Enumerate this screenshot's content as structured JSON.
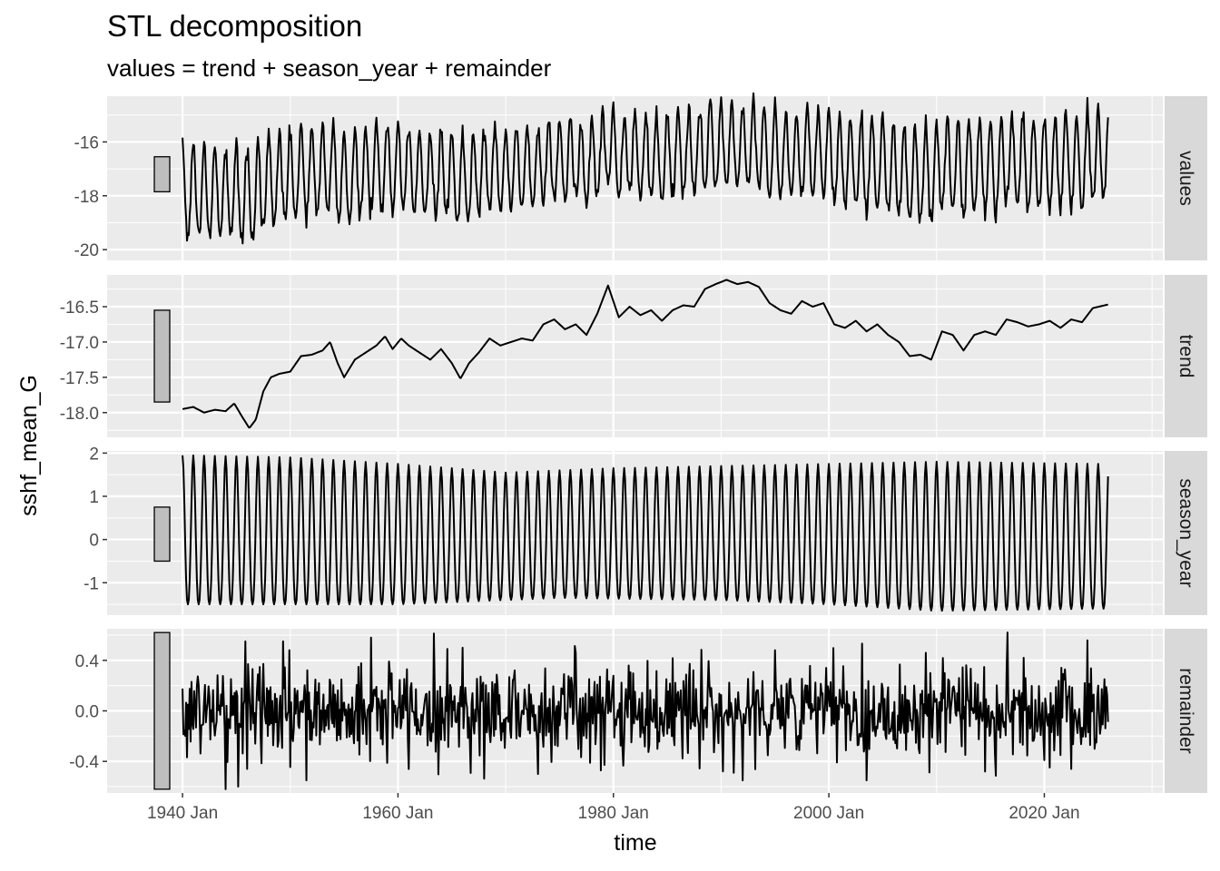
{
  "chart_data": {
    "type": "line",
    "title": "STL decomposition",
    "subtitle": "values = trend + season_year + remainder",
    "xlabel": "time",
    "ylabel": "sshf_mean_G",
    "x_range": [
      "1933-01",
      "2031-01"
    ],
    "x_ticks": [
      {
        "label": "1940 Jan",
        "year": 1940
      },
      {
        "label": "1960 Jan",
        "year": 1960
      },
      {
        "label": "1980 Jan",
        "year": 1980
      },
      {
        "label": "2000 Jan",
        "year": 2000
      },
      {
        "label": "2020 Jan",
        "year": 2020
      }
    ],
    "series_range": [
      "1940-01",
      "2025-12"
    ],
    "grid": true,
    "background": "#ebebeb",
    "line_color": "#000000",
    "scale_bar_color": "#bebebe",
    "panels": [
      {
        "name": "values",
        "ylim": [
          -20.4,
          -14.3
        ],
        "y_ticks": [
          -16,
          -18,
          -20
        ],
        "y_tick_labels": [
          "-16",
          "-18",
          "-20"
        ],
        "scale_bar": [
          -17.85,
          -16.55
        ],
        "level_points": [
          [
            1940,
            -17.95
          ],
          [
            1946,
            -18.2
          ],
          [
            1948,
            -17.5
          ],
          [
            1952,
            -17.1
          ],
          [
            1955,
            -17.3
          ],
          [
            1958,
            -17.0
          ],
          [
            1962,
            -17.3
          ],
          [
            1966,
            -17.3
          ],
          [
            1970,
            -17.0
          ],
          [
            1975,
            -16.75
          ],
          [
            1979,
            -16.2
          ],
          [
            1982,
            -16.7
          ],
          [
            1986,
            -16.5
          ],
          [
            1990,
            -16.15
          ],
          [
            1994,
            -16.45
          ],
          [
            1998,
            -16.55
          ],
          [
            2002,
            -16.9
          ],
          [
            2006,
            -17.1
          ],
          [
            2008,
            -17.2
          ],
          [
            2012,
            -17.0
          ],
          [
            2016,
            -16.75
          ],
          [
            2020,
            -16.75
          ],
          [
            2025,
            -16.45
          ]
        ],
        "season_amplitude_points": [
          [
            1940,
            1.85
          ],
          [
            1950,
            1.7
          ],
          [
            1965,
            1.5
          ],
          [
            1975,
            1.5
          ],
          [
            1990,
            1.6
          ],
          [
            2010,
            1.75
          ],
          [
            2025,
            1.7
          ]
        ],
        "noise_sd": 0.2
      },
      {
        "name": "trend",
        "ylim": [
          -18.35,
          -16.05
        ],
        "y_ticks": [
          -16.5,
          -17.0,
          -17.5,
          -18.0
        ],
        "y_tick_labels": [
          "-16.5",
          "-17.0",
          "-17.5",
          "-18.0"
        ],
        "scale_bar": [
          -17.85,
          -16.55
        ],
        "points": [
          [
            1940.0,
            -17.95
          ],
          [
            1941.0,
            -17.92
          ],
          [
            1942.0,
            -18.0
          ],
          [
            1943.0,
            -17.96
          ],
          [
            1944.0,
            -17.98
          ],
          [
            1944.8,
            -17.87
          ],
          [
            1945.5,
            -18.05
          ],
          [
            1946.2,
            -18.22
          ],
          [
            1946.8,
            -18.1
          ],
          [
            1947.5,
            -17.7
          ],
          [
            1948.2,
            -17.5
          ],
          [
            1949.0,
            -17.45
          ],
          [
            1950.0,
            -17.42
          ],
          [
            1951.0,
            -17.2
          ],
          [
            1952.0,
            -17.18
          ],
          [
            1953.0,
            -17.12
          ],
          [
            1953.7,
            -17.0
          ],
          [
            1954.4,
            -17.3
          ],
          [
            1955.0,
            -17.5
          ],
          [
            1956.0,
            -17.25
          ],
          [
            1957.0,
            -17.15
          ],
          [
            1958.0,
            -17.05
          ],
          [
            1958.8,
            -16.92
          ],
          [
            1959.5,
            -17.1
          ],
          [
            1960.3,
            -16.95
          ],
          [
            1961.0,
            -17.05
          ],
          [
            1962.0,
            -17.15
          ],
          [
            1963.0,
            -17.25
          ],
          [
            1964.0,
            -17.1
          ],
          [
            1965.0,
            -17.3
          ],
          [
            1965.8,
            -17.52
          ],
          [
            1966.6,
            -17.3
          ],
          [
            1967.5,
            -17.15
          ],
          [
            1968.5,
            -16.95
          ],
          [
            1969.5,
            -17.05
          ],
          [
            1970.5,
            -17.0
          ],
          [
            1971.5,
            -16.95
          ],
          [
            1972.5,
            -16.98
          ],
          [
            1973.5,
            -16.75
          ],
          [
            1974.5,
            -16.68
          ],
          [
            1975.5,
            -16.82
          ],
          [
            1976.5,
            -16.75
          ],
          [
            1977.5,
            -16.9
          ],
          [
            1978.5,
            -16.6
          ],
          [
            1979.5,
            -16.2
          ],
          [
            1980.5,
            -16.65
          ],
          [
            1981.5,
            -16.5
          ],
          [
            1982.5,
            -16.62
          ],
          [
            1983.5,
            -16.55
          ],
          [
            1984.5,
            -16.7
          ],
          [
            1985.5,
            -16.55
          ],
          [
            1986.5,
            -16.48
          ],
          [
            1987.5,
            -16.5
          ],
          [
            1988.5,
            -16.25
          ],
          [
            1989.5,
            -16.18
          ],
          [
            1990.5,
            -16.12
          ],
          [
            1991.5,
            -16.18
          ],
          [
            1992.5,
            -16.15
          ],
          [
            1993.5,
            -16.22
          ],
          [
            1994.5,
            -16.45
          ],
          [
            1995.5,
            -16.55
          ],
          [
            1996.5,
            -16.6
          ],
          [
            1997.5,
            -16.42
          ],
          [
            1998.5,
            -16.5
          ],
          [
            1999.5,
            -16.45
          ],
          [
            2000.5,
            -16.75
          ],
          [
            2001.5,
            -16.8
          ],
          [
            2002.5,
            -16.7
          ],
          [
            2003.5,
            -16.85
          ],
          [
            2004.5,
            -16.75
          ],
          [
            2005.5,
            -16.9
          ],
          [
            2006.5,
            -17.0
          ],
          [
            2007.5,
            -17.2
          ],
          [
            2008.5,
            -17.18
          ],
          [
            2009.5,
            -17.25
          ],
          [
            2010.5,
            -16.85
          ],
          [
            2011.5,
            -16.9
          ],
          [
            2012.5,
            -17.12
          ],
          [
            2013.5,
            -16.9
          ],
          [
            2014.5,
            -16.85
          ],
          [
            2015.5,
            -16.9
          ],
          [
            2016.5,
            -16.68
          ],
          [
            2017.5,
            -16.72
          ],
          [
            2018.5,
            -16.78
          ],
          [
            2019.5,
            -16.75
          ],
          [
            2020.5,
            -16.7
          ],
          [
            2021.5,
            -16.8
          ],
          [
            2022.5,
            -16.68
          ],
          [
            2023.5,
            -16.72
          ],
          [
            2024.5,
            -16.52
          ],
          [
            2025.9,
            -16.47
          ]
        ]
      },
      {
        "name": "season_year",
        "ylim": [
          -1.75,
          2.05
        ],
        "y_ticks": [
          2,
          1,
          0,
          -1
        ],
        "y_tick_labels": [
          "2",
          "1",
          "0",
          "-1"
        ],
        "scale_bar": [
          -0.5,
          0.75
        ],
        "peak_points": [
          [
            1940,
            1.95
          ],
          [
            1950,
            1.9
          ],
          [
            1960,
            1.75
          ],
          [
            1970,
            1.55
          ],
          [
            1980,
            1.65
          ],
          [
            1990,
            1.7
          ],
          [
            2000,
            1.75
          ],
          [
            2010,
            1.8
          ],
          [
            2025,
            1.75
          ]
        ],
        "trough_points": [
          [
            1940,
            -1.5
          ],
          [
            1960,
            -1.5
          ],
          [
            1975,
            -1.35
          ],
          [
            1990,
            -1.4
          ],
          [
            2000,
            -1.5
          ],
          [
            2010,
            -1.65
          ],
          [
            2025,
            -1.6
          ]
        ]
      },
      {
        "name": "remainder",
        "ylim": [
          -0.65,
          0.65
        ],
        "y_ticks": [
          0.4,
          0.0,
          -0.4
        ],
        "y_tick_labels": [
          "0.4",
          "0.0",
          "-0.4"
        ],
        "scale_bar": [
          -0.62,
          0.62
        ],
        "noise_sd": 0.19,
        "extremes": [
          [
            1944.0,
            -0.62
          ],
          [
            1945.2,
            -0.6
          ],
          [
            1945.8,
            0.55
          ],
          [
            1949.3,
            0.55
          ],
          [
            1951.5,
            -0.55
          ],
          [
            1957.5,
            0.58
          ],
          [
            1966.0,
            0.5
          ],
          [
            1973.0,
            -0.5
          ],
          [
            1976.5,
            0.46
          ],
          [
            1992.0,
            -0.55
          ],
          [
            1995.0,
            0.48
          ],
          [
            2003.5,
            -0.55
          ],
          [
            2009.0,
            0.46
          ],
          [
            2014.5,
            -0.48
          ],
          [
            2016.6,
            0.62
          ],
          [
            2022.5,
            -0.46
          ],
          [
            2025.8,
            0.12
          ]
        ]
      }
    ]
  }
}
